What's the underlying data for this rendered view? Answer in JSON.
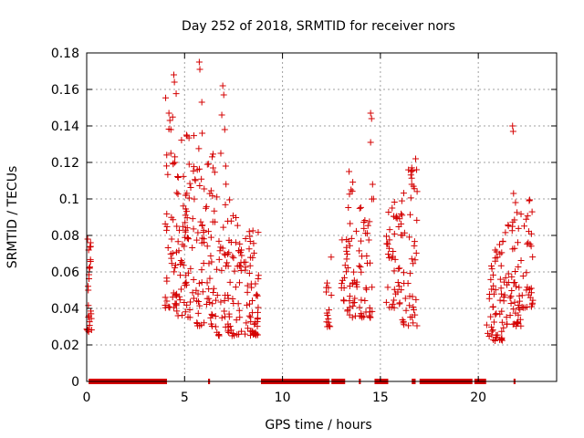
{
  "chart_data": {
    "type": "scatter",
    "title": "Day 252 of 2018, SRMTID for receiver nors",
    "xlabel": "GPS time / hours",
    "ylabel": "SRMTID / TECUs",
    "xlim": [
      0,
      24
    ],
    "ylim": [
      0,
      0.18
    ],
    "xticks": [
      0,
      5,
      10,
      15,
      20
    ],
    "yticks": [
      0,
      0.02,
      0.04,
      0.06,
      0.08,
      0.1,
      0.12,
      0.14,
      0.16,
      0.18
    ],
    "ytick_labels": [
      "0",
      "0.02",
      "0.04",
      "0.06",
      "0.08",
      "0.1",
      "0.12",
      "0.14",
      "0.16",
      "0.18"
    ],
    "grid": true,
    "marker": "+",
    "color": "#d40000",
    "zero_value_intervals": [
      [
        0.1,
        4.1
      ],
      [
        6.2,
        6.3
      ],
      [
        8.9,
        12.4
      ],
      [
        12.5,
        13.2
      ],
      [
        13.9,
        14.0
      ],
      [
        14.7,
        15.4
      ],
      [
        16.6,
        16.8
      ],
      [
        17.0,
        19.7
      ],
      [
        19.8,
        20.4
      ],
      [
        21.8,
        21.9
      ]
    ],
    "clusters": [
      {
        "x": [
          0.0,
          0.25
        ],
        "y": [
          0.025,
          0.08
        ],
        "count": 22
      },
      {
        "x": [
          4.0,
          4.6
        ],
        "y": [
          0.04,
          0.16
        ],
        "count": 45
      },
      {
        "x": [
          4.6,
          5.6
        ],
        "y": [
          0.035,
          0.14
        ],
        "count": 70
      },
      {
        "x": [
          5.6,
          6.6
        ],
        "y": [
          0.03,
          0.13
        ],
        "count": 70
      },
      {
        "x": [
          6.6,
          7.6
        ],
        "y": [
          0.025,
          0.11
        ],
        "count": 55
      },
      {
        "x": [
          7.6,
          8.8
        ],
        "y": [
          0.025,
          0.09
        ],
        "count": 80
      },
      {
        "x": [
          12.2,
          12.5
        ],
        "y": [
          0.03,
          0.08
        ],
        "count": 15
      },
      {
        "x": [
          13.0,
          13.7
        ],
        "y": [
          0.035,
          0.11
        ],
        "count": 40
      },
      {
        "x": [
          13.7,
          14.6
        ],
        "y": [
          0.035,
          0.1
        ],
        "count": 45
      },
      {
        "x": [
          15.3,
          16.1
        ],
        "y": [
          0.04,
          0.1
        ],
        "count": 45
      },
      {
        "x": [
          16.1,
          16.9
        ],
        "y": [
          0.03,
          0.12
        ],
        "count": 45
      },
      {
        "x": [
          20.4,
          21.3
        ],
        "y": [
          0.022,
          0.08
        ],
        "count": 55
      },
      {
        "x": [
          21.3,
          22.2
        ],
        "y": [
          0.03,
          0.1
        ],
        "count": 55
      },
      {
        "x": [
          22.2,
          22.8
        ],
        "y": [
          0.04,
          0.1
        ],
        "count": 30
      }
    ],
    "points": [
      [
        0.05,
        0.078
      ],
      [
        0.1,
        0.072
      ],
      [
        0.08,
        0.05
      ],
      [
        0.12,
        0.036
      ],
      [
        0.07,
        0.028
      ],
      [
        0.15,
        0.062
      ],
      [
        4.2,
        0.147
      ],
      [
        4.25,
        0.143
      ],
      [
        4.3,
        0.138
      ],
      [
        4.45,
        0.168
      ],
      [
        4.48,
        0.164
      ],
      [
        4.3,
        0.125
      ],
      [
        4.5,
        0.12
      ],
      [
        5.1,
        0.135
      ],
      [
        5.05,
        0.102
      ],
      [
        4.6,
        0.085
      ],
      [
        5.75,
        0.175
      ],
      [
        5.78,
        0.171
      ],
      [
        5.88,
        0.153
      ],
      [
        5.9,
        0.136
      ],
      [
        5.65,
        0.116
      ],
      [
        6.95,
        0.162
      ],
      [
        7.0,
        0.157
      ],
      [
        6.9,
        0.146
      ],
      [
        7.05,
        0.138
      ],
      [
        6.85,
        0.125
      ],
      [
        7.1,
        0.118
      ],
      [
        14.5,
        0.147
      ],
      [
        14.55,
        0.144
      ],
      [
        14.5,
        0.131
      ],
      [
        14.6,
        0.108
      ],
      [
        14.65,
        0.1
      ],
      [
        13.4,
        0.115
      ],
      [
        13.5,
        0.105
      ],
      [
        16.8,
        0.122
      ],
      [
        16.85,
        0.116
      ],
      [
        16.6,
        0.108
      ],
      [
        15.6,
        0.095
      ],
      [
        21.75,
        0.14
      ],
      [
        21.78,
        0.137
      ],
      [
        21.8,
        0.103
      ],
      [
        21.9,
        0.098
      ],
      [
        22.6,
        0.099
      ]
    ]
  }
}
